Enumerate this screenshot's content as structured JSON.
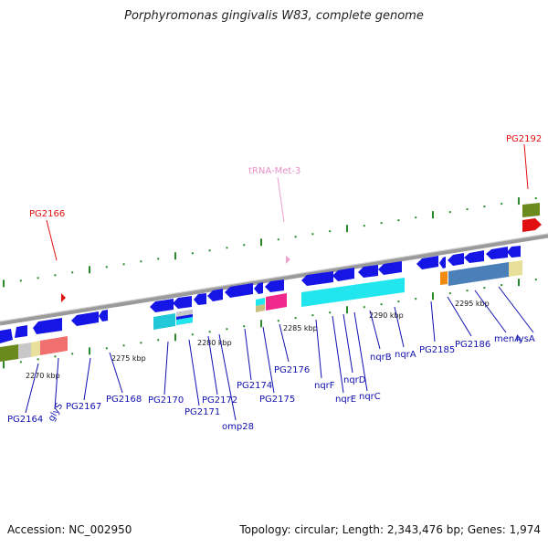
{
  "title": "Porphyromonas gingivalis W83, complete genome",
  "footer": {
    "accession": "Accession: NC_002950",
    "topology": "Topology: circular; Length: 2,343,476 bp; Genes: 1,974"
  },
  "colors": {
    "backbone": "#9a9a9a",
    "gene_blue": "#1515e6",
    "label_blue": "#1010b0",
    "callout_red": "#e01010",
    "trna_pink": "#f0a0d0",
    "tick_green": "#2a8a2a",
    "cyan": "#22e6ee",
    "magenta": "#f0288c",
    "olive": "#6b8a1e",
    "steelblue": "#4a7fb8",
    "khaki": "#e8e09a",
    "salmon": "#f07070",
    "orange": "#f08a10"
  },
  "scale": {
    "tick_labels": [
      "2270 kbp",
      "2275 kbp",
      "2280 kbp",
      "2285 kbp",
      "2290 kbp",
      "2295 kbp"
    ]
  },
  "genes_below": [
    {
      "name": "PG2164",
      "color": "label"
    },
    {
      "name": "glyS",
      "color": "label"
    },
    {
      "name": "PG2167",
      "color": "label"
    },
    {
      "name": "PG2168",
      "color": "label"
    },
    {
      "name": "PG2170",
      "color": "label"
    },
    {
      "name": "PG2171",
      "color": "label"
    },
    {
      "name": "PG2172",
      "color": "label"
    },
    {
      "name": "omp28",
      "color": "label"
    },
    {
      "name": "PG2174",
      "color": "label"
    },
    {
      "name": "PG2175",
      "color": "label"
    },
    {
      "name": "PG2176",
      "color": "label"
    },
    {
      "name": "nqrF",
      "color": "label"
    },
    {
      "name": "nqrE",
      "color": "label"
    },
    {
      "name": "nqrD",
      "color": "label"
    },
    {
      "name": "nqrC",
      "color": "label"
    },
    {
      "name": "nqrB",
      "color": "label"
    },
    {
      "name": "nqrA",
      "color": "label"
    },
    {
      "name": "PG2185",
      "color": "label"
    },
    {
      "name": "PG2186",
      "color": "label"
    },
    {
      "name": "menA",
      "color": "label"
    },
    {
      "name": "lysA",
      "color": "label"
    }
  ],
  "callouts_above": [
    {
      "name": "PG2166",
      "kind": "red"
    },
    {
      "name": "tRNA-Met-3",
      "kind": "pink"
    },
    {
      "name": "PG2192",
      "kind": "red"
    }
  ]
}
